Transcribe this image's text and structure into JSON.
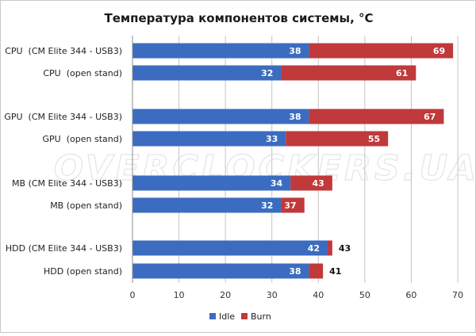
{
  "chart_data": {
    "type": "bar",
    "stacked": true,
    "orientation": "horizontal",
    "title": "Температура компонентов системы, °C",
    "categories": [
      "CPU  (CM Elite 344 - USB3)",
      "CPU  (open stand)",
      "GPU  (CM Elite 344 - USB3)",
      "GPU  (open stand)",
      "MB (CM Elite 344 - USB3)",
      "MB (open stand)",
      "HDD (CM Elite 344 - USB3)",
      "HDD (open stand)"
    ],
    "series": [
      {
        "name": "Idle",
        "color": "#3b6cc0",
        "values": [
          38,
          32,
          38,
          33,
          34,
          32,
          42,
          38
        ],
        "labels": [
          "38",
          "32",
          "38",
          "33",
          "34",
          "32",
          "42",
          "38"
        ]
      },
      {
        "name": "Burn",
        "color": "#c0393b",
        "values": [
          31,
          29,
          29,
          22,
          9,
          5,
          1,
          3
        ],
        "labels": [
          "69",
          "61",
          "67",
          "55",
          "43",
          "37",
          "43",
          "41"
        ]
      }
    ],
    "xlim": [
      0,
      70
    ],
    "xticks": [
      "0",
      "10",
      "20",
      "30",
      "40",
      "50",
      "60",
      "70"
    ],
    "grid": "vertical",
    "legend_position": "bottom-center",
    "watermark": "OVERCLOCKERS.UA"
  }
}
